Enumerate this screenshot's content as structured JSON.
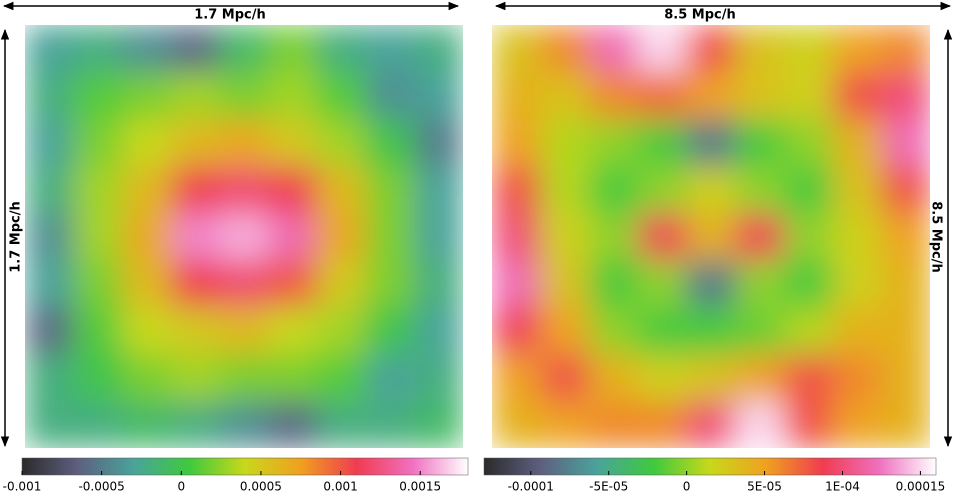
{
  "chart_data": [
    {
      "type": "heatmap",
      "label_top": "1.7 Mpc/h",
      "label_side": "1.7 Mpc/h",
      "colors": [
        "#2b2b2b",
        "#5e5f80",
        "#4aa39a",
        "#3fc93f",
        "#c8d81a",
        "#f0a020",
        "#f03c50",
        "#f070c0",
        "#ffffff"
      ],
      "zlim": [
        -0.001,
        0.0018
      ],
      "zticks": [
        {
          "value": -0.001,
          "label": "-0.001"
        },
        {
          "value": -0.0005,
          "label": "-0.0005"
        },
        0,
        {
          "value": 0.0005,
          "label": "0.0005"
        },
        {
          "value": 0.001,
          "label": "0.001"
        },
        {
          "value": 0.0015,
          "label": "0.0015"
        }
      ],
      "values": [
        [
          -0.0003,
          -0.0002,
          -0.0004,
          -0.0006,
          -0.0001,
          0.0002,
          -0.0002,
          -0.0003,
          -0.0002
        ],
        [
          -0.0002,
          0.0001,
          0.0002,
          0.0003,
          0.0002,
          0.0003,
          0.0001,
          -0.0004,
          -0.0003
        ],
        [
          -0.0003,
          0.0002,
          0.0004,
          0.0006,
          0.0007,
          0.0005,
          0.0003,
          0,
          -0.0005
        ],
        [
          -0.0002,
          0.0003,
          0.0006,
          0.0011,
          0.0012,
          0.0011,
          0.0006,
          0.0002,
          -0.0003
        ],
        [
          -0.0004,
          0.0003,
          0.0007,
          0.0015,
          0.0016,
          0.0014,
          0.0007,
          0.0002,
          -0.0003
        ],
        [
          -0.0003,
          0.0002,
          0.0006,
          0.0011,
          0.0012,
          0.001,
          0.0005,
          0.0002,
          -0.0002
        ],
        [
          -0.0006,
          0.0001,
          0.0004,
          0.0005,
          0.0006,
          0.0004,
          0.0003,
          0,
          -0.0003
        ],
        [
          -0.0002,
          0,
          0.0002,
          0.0003,
          0.0002,
          0.0002,
          0.0001,
          -0.0003,
          -0.0002
        ],
        [
          -0.0002,
          -0.0002,
          -0.0001,
          -0.0002,
          -0.0004,
          -0.0006,
          -0.0002,
          -0.0002,
          -0.0001
        ]
      ]
    },
    {
      "type": "heatmap",
      "label_top": "8.5 Mpc/h",
      "label_side": "8.5 Mpc/h",
      "colors": [
        "#2b2b2b",
        "#5e5f80",
        "#4aa39a",
        "#3fc93f",
        "#c8d81a",
        "#f0a020",
        "#f03c50",
        "#f070c0",
        "#ffffff"
      ],
      "zlim": [
        -0.00013,
        0.00016
      ],
      "zticks": [
        {
          "value": -0.0001,
          "label": "-0.0001"
        },
        {
          "value": -5e-05,
          "label": "-5E-05"
        },
        0,
        {
          "value": 5e-05,
          "label": "5E-05"
        },
        {
          "value": 0.0001,
          "label": "1E-04"
        },
        {
          "value": 0.00015,
          "label": "0.00015"
        }
      ],
      "values": [
        [
          3e-05,
          6e-05,
          0.00012,
          0.00015,
          8e-05,
          3e-05,
          2e-05,
          5e-05,
          6e-05
        ],
        [
          4e-05,
          3e-05,
          6e-05,
          7e-05,
          5e-05,
          3e-05,
          2e-05,
          8e-05,
          0.0001
        ],
        [
          5e-05,
          1e-05,
          0,
          -2e-05,
          -8e-05,
          -2e-05,
          0,
          4e-05,
          0.00012
        ],
        [
          8e-05,
          1e-05,
          -2e-05,
          0,
          2e-05,
          0,
          -2e-05,
          3e-05,
          8e-05
        ],
        [
          0.0001,
          2e-05,
          0,
          9e-05,
          4e-05,
          9e-05,
          0,
          2e-05,
          5e-05
        ],
        [
          0.00012,
          3e-05,
          -2e-05,
          0,
          -8e-05,
          0,
          -2e-05,
          2e-05,
          4e-05
        ],
        [
          9e-05,
          5e-05,
          0,
          -2e-05,
          -2e-05,
          -1e-05,
          1e-05,
          4e-05,
          4e-05
        ],
        [
          5e-05,
          8e-05,
          4e-05,
          2e-05,
          3e-05,
          5e-05,
          8e-05,
          6e-05,
          4e-05
        ],
        [
          4e-05,
          5e-05,
          6e-05,
          6e-05,
          0.0001,
          0.00015,
          8e-05,
          5e-05,
          4e-05
        ]
      ]
    }
  ]
}
